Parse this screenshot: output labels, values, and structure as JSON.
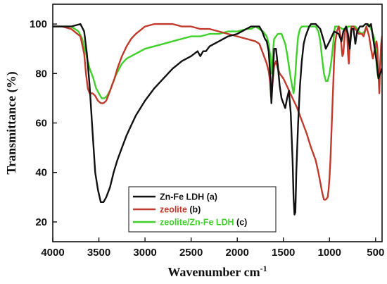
{
  "chart_data": {
    "type": "line",
    "title": "",
    "xlabel": "Wavenumber cm",
    "xlabel_superscript": "-1",
    "ylabel": "Transmittance (%)",
    "xlim": [
      4000,
      430
    ],
    "ylim": [
      12,
      108
    ],
    "x_reversed": true,
    "xticks": [
      4000,
      3500,
      3000,
      2500,
      2000,
      1500,
      1000,
      500
    ],
    "yticks": [
      20,
      40,
      60,
      80,
      100
    ],
    "grid": false,
    "legend_position": "bottom-left",
    "series": [
      {
        "name": "Zn-Fe LDH",
        "tag": "(a)",
        "color": "#111111",
        "name_color": "#111111",
        "tag_color": "#111111",
        "x": [
          4000,
          3900,
          3800,
          3700,
          3660,
          3630,
          3600,
          3570,
          3540,
          3510,
          3480,
          3450,
          3420,
          3380,
          3340,
          3300,
          3250,
          3200,
          3150,
          3100,
          3000,
          2900,
          2800,
          2700,
          2600,
          2500,
          2430,
          2400,
          2370,
          2340,
          2300,
          2200,
          2100,
          2000,
          1900,
          1850,
          1800,
          1760,
          1730,
          1700,
          1680,
          1660,
          1640,
          1630,
          1620,
          1600,
          1580,
          1560,
          1540,
          1520,
          1500,
          1480,
          1460,
          1440,
          1420,
          1400,
          1390,
          1380,
          1370,
          1360,
          1340,
          1320,
          1300,
          1280,
          1260,
          1240,
          1220,
          1200,
          1150,
          1100,
          1060,
          1040,
          1000,
          950,
          900,
          870,
          850,
          820,
          800,
          780,
          760,
          740,
          720,
          700,
          670,
          640,
          610,
          590,
          570,
          550,
          530,
          510,
          490,
          470,
          450,
          430
        ],
        "y": [
          99,
          99,
          99,
          100,
          97,
          88,
          75,
          57,
          40,
          33,
          28,
          28,
          30,
          34,
          40,
          45,
          50,
          55,
          59,
          63,
          69,
          74,
          78,
          82,
          85,
          87,
          89,
          87,
          89,
          89,
          91,
          93,
          95,
          96,
          98,
          99,
          99,
          99,
          97,
          94,
          93,
          89,
          78,
          68,
          75,
          90,
          90,
          83,
          75,
          70,
          68,
          66,
          70,
          73,
          64,
          45,
          30,
          23,
          24,
          40,
          60,
          75,
          85,
          92,
          95,
          97,
          99,
          100,
          100,
          98,
          93,
          90,
          93,
          97,
          96,
          93,
          97,
          99,
          96,
          90,
          98,
          98,
          92,
          97,
          99,
          99,
          100,
          100,
          99,
          100,
          95,
          90,
          85,
          78,
          80,
          82
        ]
      },
      {
        "name": "zeolite",
        "tag": "(b)",
        "color": "#c0392b",
        "name_color": "#c0392b",
        "tag_color": "#111111",
        "x": [
          4000,
          3900,
          3800,
          3700,
          3660,
          3640,
          3620,
          3600,
          3570,
          3540,
          3510,
          3480,
          3450,
          3420,
          3390,
          3360,
          3330,
          3300,
          3250,
          3200,
          3150,
          3100,
          3000,
          2900,
          2800,
          2700,
          2600,
          2500,
          2400,
          2300,
          2200,
          2100,
          2000,
          1900,
          1800,
          1760,
          1720,
          1700,
          1680,
          1660,
          1645,
          1635,
          1630,
          1620,
          1600,
          1580,
          1560,
          1540,
          1520,
          1500,
          1450,
          1400,
          1350,
          1300,
          1250,
          1200,
          1150,
          1120,
          1100,
          1080,
          1060,
          1040,
          1020,
          1010,
          1000,
          990,
          980,
          970,
          960,
          950,
          940,
          920,
          900,
          880,
          860,
          850,
          830,
          810,
          800,
          790,
          780,
          770,
          760,
          740,
          720,
          700,
          680,
          650,
          630,
          600,
          570,
          550,
          530,
          520,
          500,
          490,
          480,
          470,
          460,
          450,
          440,
          430
        ],
        "y": [
          99,
          99,
          98,
          95,
          88,
          80,
          74,
          72,
          72,
          71,
          69,
          68,
          68,
          69,
          72,
          75,
          78,
          82,
          87,
          91,
          94,
          96,
          99,
          100,
          100,
          100,
          99,
          99,
          98,
          98,
          97,
          96,
          95,
          94,
          93,
          92,
          88,
          86,
          84,
          81,
          77,
          71,
          70,
          75,
          83,
          85,
          82,
          80,
          79,
          78,
          74,
          70,
          66,
          61,
          56,
          50,
          45,
          40,
          36,
          32,
          29,
          29,
          30,
          33,
          38,
          45,
          55,
          65,
          75,
          85,
          92,
          97,
          99,
          95,
          87,
          88,
          98,
          97,
          88,
          84,
          92,
          97,
          99,
          99,
          98,
          97,
          96,
          96,
          95,
          99,
          95,
          90,
          86,
          88,
          91,
          93,
          90,
          80,
          72,
          85,
          92,
          95
        ]
      },
      {
        "name": "zeolite/Zn-Fe LDH",
        "tag": "(c)",
        "color": "#3fd12a",
        "name_color": "#3fd12a",
        "tag_color": "#111111",
        "x": [
          4000,
          3900,
          3800,
          3720,
          3680,
          3640,
          3600,
          3560,
          3530,
          3500,
          3470,
          3440,
          3410,
          3380,
          3350,
          3320,
          3280,
          3250,
          3200,
          3100,
          3000,
          2900,
          2800,
          2600,
          2500,
          2400,
          2300,
          2200,
          2100,
          2000,
          1900,
          1850,
          1800,
          1760,
          1720,
          1700,
          1680,
          1660,
          1645,
          1635,
          1630,
          1620,
          1600,
          1560,
          1520,
          1500,
          1480,
          1460,
          1440,
          1420,
          1400,
          1390,
          1380,
          1370,
          1360,
          1340,
          1320,
          1300,
          1280,
          1260,
          1240,
          1220,
          1200,
          1150,
          1120,
          1100,
          1080,
          1060,
          1040,
          1020,
          1000,
          980,
          960,
          950,
          940,
          920,
          900,
          860,
          820,
          800,
          780,
          760,
          720,
          700,
          680,
          650,
          620,
          600,
          580,
          560,
          540,
          520,
          500,
          490,
          480,
          470,
          460,
          450,
          440,
          430
        ],
        "y": [
          99,
          99,
          99,
          97,
          94,
          88,
          82,
          78,
          74,
          72,
          70,
          70,
          71,
          73,
          76,
          79,
          82,
          84,
          86,
          88,
          90,
          91,
          92,
          94,
          95,
          95,
          96,
          96,
          97,
          97,
          98,
          98,
          99,
          98,
          97,
          96,
          95,
          92,
          88,
          82,
          80,
          86,
          94,
          96,
          96,
          94,
          92,
          88,
          83,
          78,
          74,
          72,
          75,
          80,
          86,
          95,
          98,
          99,
          99,
          99,
          99,
          99,
          99,
          99,
          97,
          93,
          86,
          80,
          77,
          77,
          80,
          85,
          92,
          96,
          99,
          99,
          99,
          98,
          98,
          99,
          99,
          99,
          99,
          98,
          97,
          96,
          97,
          99,
          100,
          99,
          97,
          95,
          90,
          84,
          80,
          78,
          80,
          83,
          86,
          88
        ]
      }
    ]
  }
}
